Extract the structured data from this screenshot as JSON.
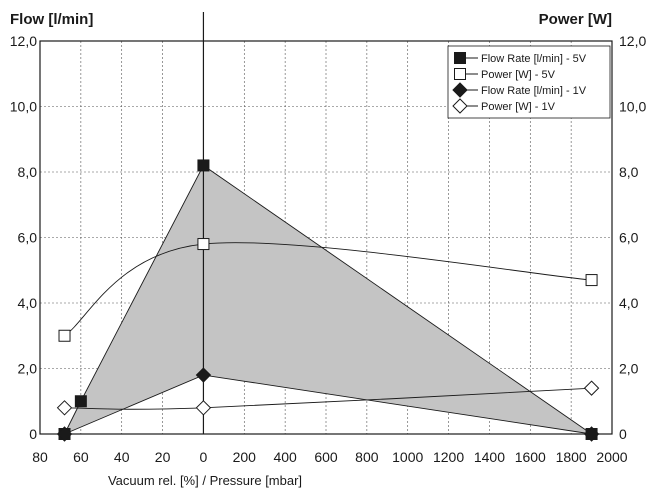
{
  "chart_data": {
    "type": "line",
    "title": "",
    "y_left_label": "Flow [l/min]",
    "y_right_label": "Power [W]",
    "xlabel": "Vacuum rel. [%] / Pressure [mbar]",
    "ylim": [
      0,
      12
    ],
    "y_ticks": [
      "0",
      "2,0",
      "4,0",
      "6,0",
      "8,0",
      "10,0",
      "12,0"
    ],
    "x_ticks": [
      "80",
      "60",
      "40",
      "20",
      "0",
      "200",
      "400",
      "600",
      "800",
      "1000",
      "1200",
      "1400",
      "1600",
      "1800",
      "2000"
    ],
    "x_axis_note": "left segment: vacuum rel. 80 to 0 %; right segment: pressure 0 to 2000 mbar",
    "grid": true,
    "legend_position": "top-right",
    "shaded_region_between": [
      "Flow Rate [l/min] - 5V",
      "Flow Rate [l/min] - 1V"
    ],
    "series": [
      {
        "name": "Flow Rate [l/min] - 5V",
        "marker": "filled-square",
        "points": [
          {
            "x": "68 %",
            "y": 0.0
          },
          {
            "x": "60 %",
            "y": 1.0
          },
          {
            "x": "0",
            "y": 8.2
          },
          {
            "x": "1900 mbar",
            "y": 0.0
          }
        ]
      },
      {
        "name": "Power [W] - 5V",
        "marker": "open-square",
        "points": [
          {
            "x": "68 %",
            "y": 3.0
          },
          {
            "x": "0",
            "y": 5.8
          },
          {
            "x": "1900 mbar",
            "y": 4.7
          }
        ]
      },
      {
        "name": "Flow Rate [l/min] - 1V",
        "marker": "filled-diamond",
        "points": [
          {
            "x": "68 %",
            "y": 0.0
          },
          {
            "x": "0",
            "y": 1.8
          },
          {
            "x": "1900 mbar",
            "y": 0.0
          }
        ]
      },
      {
        "name": "Power [W] - 1V",
        "marker": "open-diamond",
        "points": [
          {
            "x": "68 %",
            "y": 0.8
          },
          {
            "x": "0",
            "y": 0.8
          },
          {
            "x": "1900 mbar",
            "y": 1.4
          }
        ]
      }
    ]
  }
}
